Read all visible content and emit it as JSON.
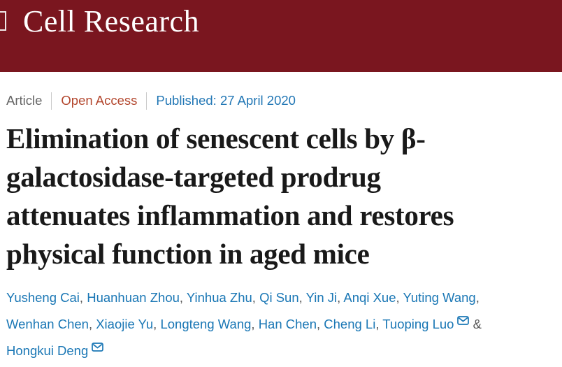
{
  "header": {
    "journal_title": "Cell Research",
    "background_color": "#7a161f",
    "title_color": "#ffffff"
  },
  "meta": {
    "article_type": "Article",
    "open_access": "Open Access",
    "published": "Published: 27 April 2020",
    "open_access_color": "#b3472e",
    "published_color": "#2277b5",
    "article_type_color": "#666666"
  },
  "title": {
    "lines": [
      "Elimination of senescent cells by β-",
      "galactosidase-targeted prodrug",
      "attenuates inflammation and restores",
      "physical function in aged mice"
    ],
    "color": "#191919"
  },
  "authors": {
    "link_color": "#1a77b5",
    "lines": [
      [
        {
          "type": "link",
          "text": "Yusheng Cai"
        },
        {
          "type": "sep",
          "text": ", "
        },
        {
          "type": "link",
          "text": "Huanhuan Zhou"
        },
        {
          "type": "sep",
          "text": ", "
        },
        {
          "type": "link",
          "text": "Yinhua Zhu"
        },
        {
          "type": "sep",
          "text": ", "
        },
        {
          "type": "link",
          "text": "Qi Sun"
        },
        {
          "type": "sep",
          "text": ", "
        },
        {
          "type": "link",
          "text": "Yin Ji"
        },
        {
          "type": "sep",
          "text": ", "
        },
        {
          "type": "link",
          "text": "Anqi Xue"
        },
        {
          "type": "sep",
          "text": ", "
        },
        {
          "type": "link",
          "text": "Yuting Wang"
        },
        {
          "type": "sep",
          "text": ","
        }
      ],
      [
        {
          "type": "link",
          "text": "Wenhan Chen"
        },
        {
          "type": "sep",
          "text": ", "
        },
        {
          "type": "link",
          "text": "Xiaojie Yu"
        },
        {
          "type": "sep",
          "text": ", "
        },
        {
          "type": "link",
          "text": "Longteng Wang"
        },
        {
          "type": "sep",
          "text": ", "
        },
        {
          "type": "link",
          "text": "Han Chen"
        },
        {
          "type": "sep",
          "text": ", "
        },
        {
          "type": "link",
          "text": "Cheng Li"
        },
        {
          "type": "sep",
          "text": ", "
        },
        {
          "type": "link",
          "text": "Tuoping Luo"
        },
        {
          "type": "icon",
          "name": "email-envelope-icon"
        },
        {
          "type": "sep",
          "text": " & "
        }
      ],
      [
        {
          "type": "link",
          "text": "Hongkui Deng"
        },
        {
          "type": "icon",
          "name": "email-envelope-icon"
        }
      ]
    ]
  }
}
